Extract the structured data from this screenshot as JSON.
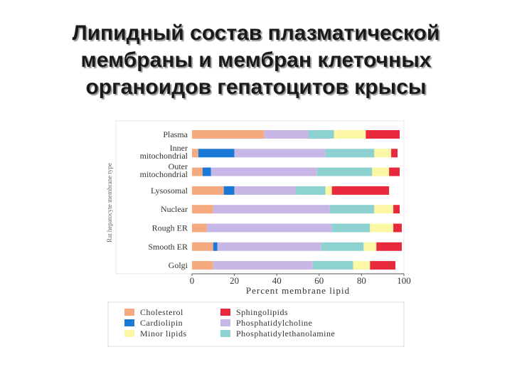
{
  "title_lines": [
    "Липидный состав плазматической",
    "мембраны и мембран клеточных",
    "органоидов гепатоцитов крысы"
  ],
  "chart_data": {
    "type": "bar",
    "stacked": true,
    "orientation": "horizontal",
    "categories": [
      [
        "Plasma"
      ],
      [
        "Inner",
        "mitochondrial"
      ],
      [
        "Outer",
        "mitochondrial"
      ],
      [
        "Lysosomal"
      ],
      [
        "Nuclear"
      ],
      [
        "Rough ER"
      ],
      [
        "Smooth ER"
      ],
      [
        "Golgi"
      ]
    ],
    "xlabel": "Percent membrane lipid",
    "ylabel": "Rat hepatocyte membrane type",
    "xlim": [
      0,
      100
    ],
    "xticks": [
      0,
      20,
      40,
      60,
      80,
      100
    ],
    "legend_position": "bottom",
    "series": [
      {
        "name": "Cholesterol",
        "color": "#f4a97e",
        "values": [
          34,
          3,
          5,
          15,
          10,
          7,
          10,
          10
        ]
      },
      {
        "name": "Cardiolipin",
        "color": "#1a78d6",
        "values": [
          0,
          17,
          4,
          5,
          0,
          0,
          2,
          0
        ]
      },
      {
        "name": "Phosphatidylcholine",
        "color": "#c7b7e6",
        "values": [
          21,
          43,
          50,
          29,
          55,
          59,
          49,
          47
        ]
      },
      {
        "name": "Phosphatidylethanolamine",
        "color": "#8ed1d1",
        "values": [
          12,
          23,
          26,
          14,
          21,
          18,
          20,
          19
        ]
      },
      {
        "name": "Minor lipids",
        "color": "#fbf7a4",
        "values": [
          15,
          8,
          8,
          3,
          9,
          11,
          6,
          8
        ]
      },
      {
        "name": "Sphingolipids",
        "color": "#e8283c",
        "values": [
          16,
          3,
          5,
          27,
          3,
          4,
          12,
          12
        ]
      }
    ],
    "legend_order": [
      "Cholesterol",
      "Sphingolipids",
      "Cardiolipin",
      "Phosphatidylcholine",
      "Minor lipids",
      "Phosphatidylethanolamine"
    ]
  }
}
